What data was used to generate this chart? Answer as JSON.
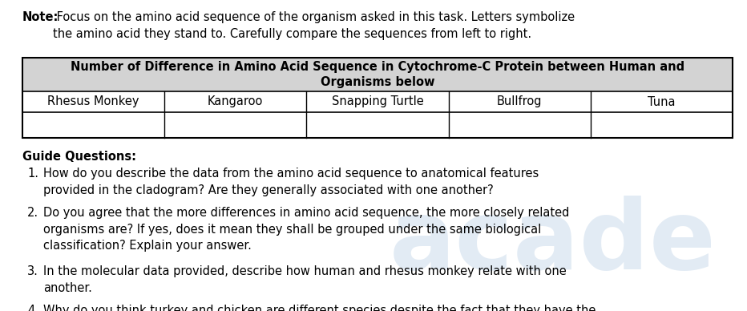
{
  "note_bold": "Note:",
  "note_rest": " Focus on the amino acid sequence of the organism asked in this task. Letters symbolize\nthe amino acid they stand to. Carefully compare the sequences from left to right.",
  "table_title_line1": "Number of Difference in Amino Acid Sequence in Cytochrome-C Protein between Human and",
  "table_title_line2": "Organisms below",
  "table_headers": [
    "Rhesus Monkey",
    "Kangaroo",
    "Snapping Turtle",
    "Bullfrog",
    "Tuna"
  ],
  "guide_title": "Guide Questions:",
  "guide_questions": [
    "How do you describe the data from the amino acid sequence to anatomical features\nprovided in the cladogram? Are they generally associated with one another?",
    "Do you agree that the more differences in amino acid sequence, the more closely related\norganisms are? If yes, does it mean they shall be grouped under the same biological\nclassification? Explain your answer.",
    "In the molecular data provided, describe how human and rhesus monkey relate with one\nanother.",
    "Why do you think turkey and chicken are different species despite the fact that they have the\nsame      sequence      of      amino      acids      for      cytochrome-c      protein?"
  ],
  "bg_color": "#ffffff",
  "table_header_bg": "#d3d3d3",
  "table_border_color": "#000000",
  "text_color": "#000000",
  "font_size": 10.5,
  "watermark_text": "acade",
  "watermark_color": "#c0d4e8",
  "watermark_alpha": 0.45,
  "fig_width": 9.32,
  "fig_height": 3.88,
  "dpi": 100
}
